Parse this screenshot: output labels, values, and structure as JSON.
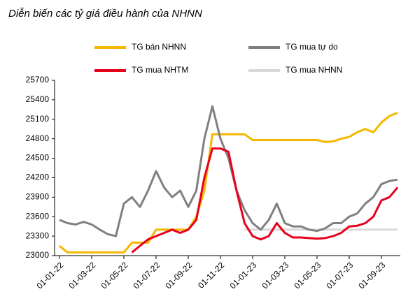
{
  "chart_data": {
    "type": "line",
    "title": "Diễn biến các tỷ giá điều hành của NHNN",
    "categories": [
      "01-01-22",
      null,
      null,
      null,
      "01-03-22",
      null,
      null,
      null,
      "01-05-22",
      null,
      null,
      null,
      "01-07-22",
      null,
      null,
      null,
      "01-09-22",
      null,
      null,
      null,
      "01-11-22",
      null,
      null,
      null,
      "01-01-23",
      null,
      null,
      null,
      "01-03-23",
      null,
      null,
      null,
      "01-05-23",
      null,
      null,
      null,
      "01-07-23",
      null,
      null,
      null,
      "01-09-23",
      null,
      null
    ],
    "series": [
      {
        "name": "TG bán NHNN",
        "color": "#f5b800",
        "values": [
          23150,
          23050,
          23050,
          23050,
          23050,
          23050,
          23050,
          23050,
          23050,
          23200,
          23200,
          23200,
          23400,
          23400,
          23400,
          23400,
          23400,
          23600,
          24000,
          24870,
          24870,
          24870,
          24870,
          24870,
          24780,
          24780,
          24780,
          24780,
          24780,
          24780,
          24780,
          24780,
          24780,
          24750,
          24760,
          24800,
          24830,
          24900,
          24950,
          24900,
          25050,
          25150,
          25200
        ]
      },
      {
        "name": "TG mua tự do",
        "color": "#808080",
        "values": [
          23550,
          23500,
          23480,
          23520,
          23480,
          23400,
          23330,
          23300,
          23800,
          23900,
          23750,
          24000,
          24300,
          24050,
          23900,
          24000,
          23750,
          24000,
          24800,
          25300,
          24800,
          24500,
          24000,
          23700,
          23500,
          23400,
          23550,
          23800,
          23500,
          23450,
          23450,
          23400,
          23380,
          23420,
          23500,
          23500,
          23600,
          23650,
          23800,
          23900,
          24100,
          24150,
          24170
        ]
      },
      {
        "name": "TG mua NHTM",
        "color": "#e8001c",
        "values": [
          null,
          null,
          null,
          null,
          null,
          null,
          null,
          null,
          null,
          23050,
          23150,
          23250,
          23300,
          23350,
          23400,
          23350,
          23400,
          23550,
          24200,
          24650,
          24650,
          24600,
          24000,
          23500,
          23300,
          23250,
          23300,
          23500,
          23350,
          23280,
          23280,
          23270,
          23260,
          23270,
          23300,
          23350,
          23450,
          23460,
          23500,
          23600,
          23850,
          23900,
          24050
        ]
      },
      {
        "name": "TG mua NHNN",
        "color": "#d9d9d9",
        "values": [
          null,
          null,
          null,
          null,
          null,
          null,
          null,
          null,
          null,
          null,
          null,
          null,
          null,
          null,
          null,
          null,
          null,
          null,
          null,
          null,
          null,
          null,
          null,
          23400,
          23400,
          23400,
          23400,
          23400,
          23400,
          23400,
          23400,
          23400,
          23400,
          23400,
          23400,
          23400,
          23400,
          23400,
          23400,
          23400,
          23400,
          23400,
          23400
        ]
      }
    ],
    "ylim": [
      23000,
      25700
    ],
    "yticks": [
      23000,
      23300,
      23600,
      23900,
      24200,
      24500,
      24800,
      25100,
      25400,
      25700
    ]
  }
}
